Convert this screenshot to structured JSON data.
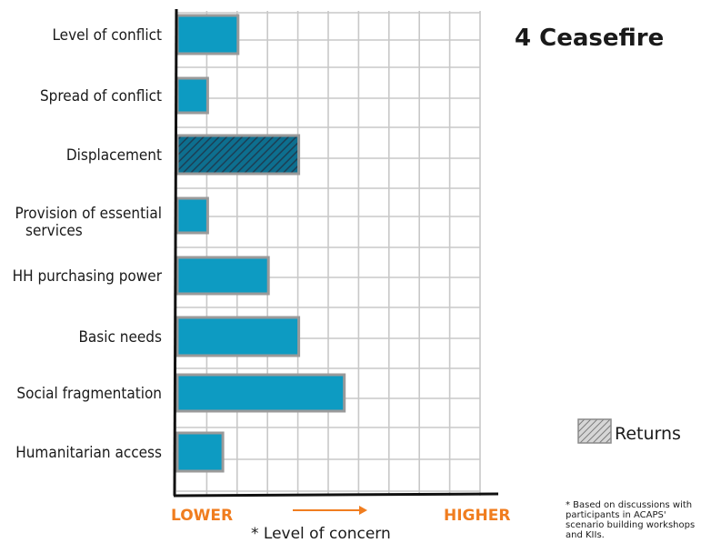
{
  "chart_data": {
    "type": "bar",
    "orientation": "horizontal",
    "title": "4 Ceasefire",
    "categories": [
      "Level of conflict",
      "Spread of conflict",
      "Displacement",
      "Provision of essential services",
      "HH purchasing power",
      "Basic needs",
      "Social fragmentation",
      "Humanitarian access"
    ],
    "values": [
      2,
      1,
      4,
      1,
      3,
      4,
      5.5,
      1.5
    ],
    "hatched": [
      false,
      false,
      true,
      false,
      false,
      false,
      false,
      false
    ],
    "xlim": [
      0,
      10
    ],
    "x_scale_labels": {
      "low": "LOWER",
      "high": "HIGHER"
    },
    "xlabel": "* Level of concern",
    "grid": true,
    "legend": {
      "label": "Returns",
      "position": "right"
    },
    "footnote": "* Based on discussions with participants in ACAPS' scenario building workshops and KIIs.",
    "colors": {
      "bar": "#0d9bc2",
      "bar_edge": "#9a9a9a",
      "grid": "#c8c8c8",
      "axis": "#111111",
      "accent": "#f07d1f",
      "hatch": "#1c4e68"
    }
  }
}
